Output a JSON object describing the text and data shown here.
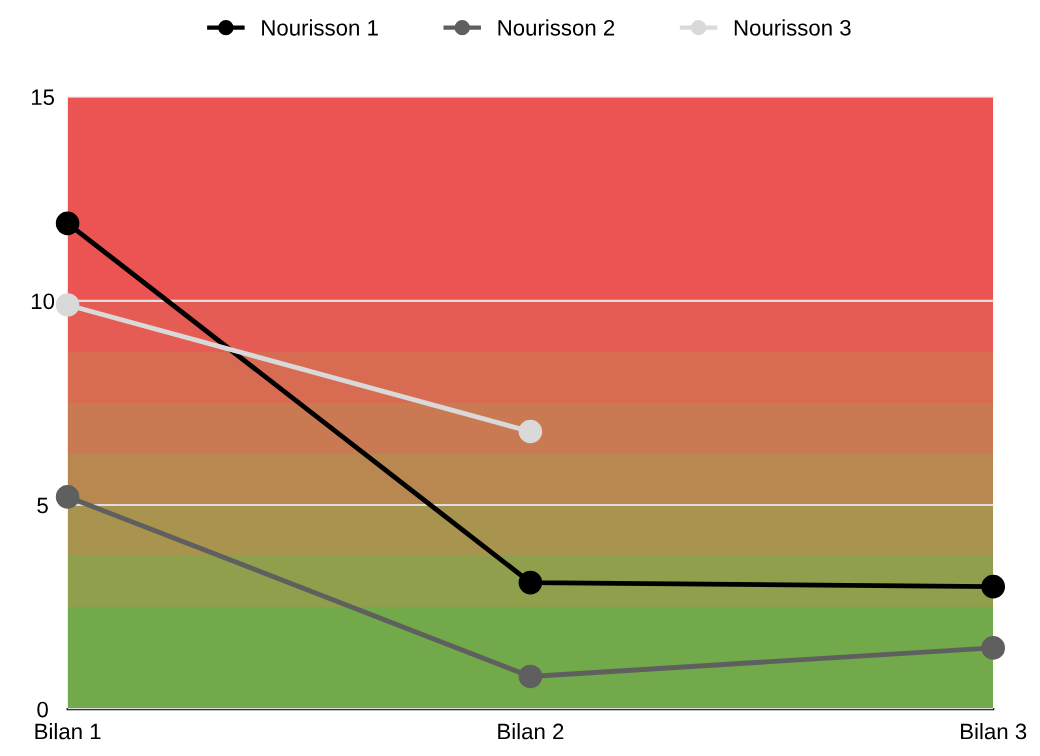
{
  "chart_data": {
    "type": "line",
    "categories": [
      "Bilan 1",
      "Bilan 2",
      "Bilan 3"
    ],
    "series": [
      {
        "name": "Nourisson 1",
        "color": "#000000",
        "values": [
          11.9,
          3.1,
          3.0
        ]
      },
      {
        "name": "Nourisson 2",
        "color": "#5f5f5f",
        "values": [
          5.2,
          0.8,
          1.5
        ]
      },
      {
        "name": "Nourisson 3",
        "color": "#d9d9d9",
        "values": [
          9.9,
          6.8,
          null
        ]
      }
    ],
    "ylim": [
      0,
      15
    ],
    "yticks": [
      0,
      5,
      10,
      15
    ],
    "grid": "y",
    "legend": "top",
    "marker": "circle",
    "line_style": "solid",
    "bands": [
      {
        "axis": "y",
        "from": 0,
        "to": 2.5,
        "color": "#72a94a"
      },
      {
        "axis": "y",
        "from": 2.5,
        "to": 3.75,
        "color": "#8fa04c"
      },
      {
        "axis": "y",
        "from": 3.75,
        "to": 5,
        "color": "#a8944f"
      },
      {
        "axis": "y",
        "from": 5,
        "to": 6.25,
        "color": "#b98851"
      },
      {
        "axis": "y",
        "from": 6.25,
        "to": 7.5,
        "color": "#c97a52"
      },
      {
        "axis": "y",
        "from": 7.5,
        "to": 8.75,
        "color": "#d86c53"
      },
      {
        "axis": "y",
        "from": 8.75,
        "to": 10,
        "color": "#e55c54"
      },
      {
        "axis": "y",
        "from": 10,
        "to": 15,
        "color": "#ec5453"
      }
    ]
  }
}
